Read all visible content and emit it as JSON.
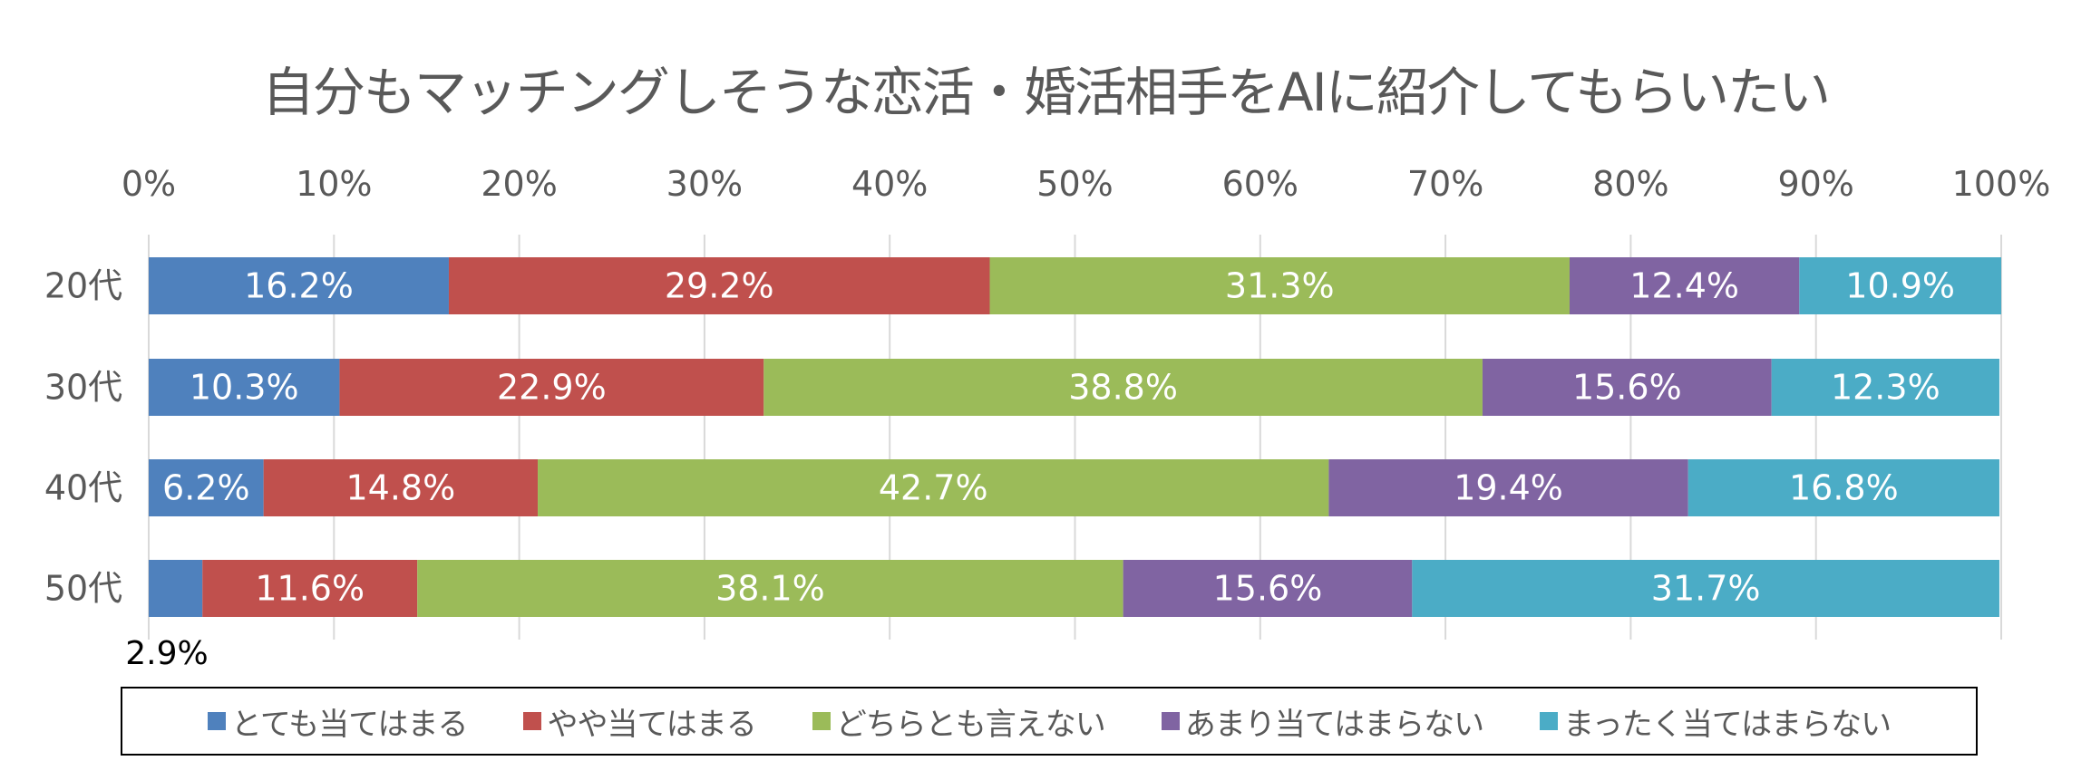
{
  "chart_data": {
    "type": "bar",
    "orientation": "horizontal",
    "stacked": "percent",
    "title": "自分もマッチングしそうな恋活・婚活相手をAIに紹介してもらいたい",
    "categories": [
      "20代",
      "30代",
      "40代",
      "50代"
    ],
    "xlim": [
      0,
      100
    ],
    "x_ticks": [
      "0%",
      "10%",
      "20%",
      "30%",
      "40%",
      "50%",
      "60%",
      "70%",
      "80%",
      "90%",
      "100%"
    ],
    "grid": true,
    "legend_position": "bottom",
    "series": [
      {
        "name": "とても当てはまる",
        "color": "#4f81bd",
        "values": [
          16.2,
          10.3,
          6.2,
          2.9
        ],
        "labels": [
          "16.2%",
          "10.3%",
          "6.2%",
          "2.9%"
        ]
      },
      {
        "name": "やや当てはまる",
        "color": "#c0504d",
        "values": [
          29.2,
          22.9,
          14.8,
          11.6
        ],
        "labels": [
          "29.2%",
          "22.9%",
          "14.8%",
          "11.6%"
        ]
      },
      {
        "name": "どちらとも言えない",
        "color": "#9bbb59",
        "values": [
          31.3,
          38.8,
          42.7,
          38.1
        ],
        "labels": [
          "31.3%",
          "38.8%",
          "42.7%",
          "38.1%"
        ]
      },
      {
        "name": "あまり当てはまらない",
        "color": "#8064a2",
        "values": [
          12.4,
          15.6,
          19.4,
          15.6
        ],
        "labels": [
          "12.4%",
          "15.6%",
          "19.4%",
          "15.6%"
        ]
      },
      {
        "name": "まったく当てはまらない",
        "color": "#4bacc6",
        "values": [
          10.9,
          12.3,
          16.8,
          31.7
        ],
        "labels": [
          "10.9%",
          "12.3%",
          "16.8%",
          "31.7%"
        ]
      }
    ]
  }
}
